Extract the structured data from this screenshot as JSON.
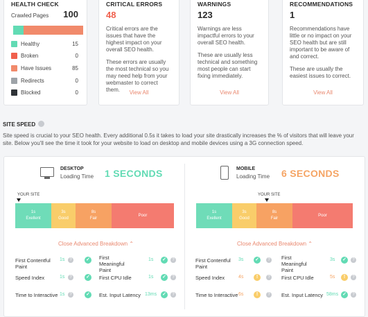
{
  "health_check": {
    "title": "HEALTH CHECK",
    "crawled_label": "Crawled Pages",
    "crawled_value": "100",
    "items": [
      {
        "label": "Healthy",
        "value": "15",
        "color": "#62dbb4"
      },
      {
        "label": "Broken",
        "value": "0",
        "color": "#f0604d"
      },
      {
        "label": "Have Issues",
        "value": "85",
        "color": "#f18a6b"
      },
      {
        "label": "Redirects",
        "value": "0",
        "color": "#9ea3a8"
      },
      {
        "label": "Blocked",
        "value": "0",
        "color": "#2f3337"
      }
    ],
    "bar": {
      "healthy_fraction": 0.15,
      "issues_fraction": 0.85
    }
  },
  "critical": {
    "title": "CRITICAL ERRORS",
    "count": "48",
    "count_color": "#f0604d",
    "desc1": "Critical errors are the issues that have the highest impact on your overall SEO health.",
    "desc2": "These errors are usually the most technical so you may need help from your webmaster to correct them.",
    "view_all": "View All"
  },
  "warnings": {
    "title": "WARNINGS",
    "count": "123",
    "desc1": "Warnings are less impactful errors to your overall SEO health.",
    "desc2": "These are usually less technical and something most people can start fixing immediately.",
    "view_all": "View All"
  },
  "recommendations": {
    "title": "RECOMMENDATIONS",
    "count": "1",
    "desc1": "Recommendations have little or no impact on your SEO health but are still important to be aware of and correct.",
    "desc2": "These are usually the easiest issues to correct.",
    "view_all": "View All"
  },
  "site_speed": {
    "title": "SITE SPEED",
    "text": "Site speed is crucial to your SEO health. Every additional 0.5s it takes to load your site drastically increases the % of visitors that will leave your site. Below you'll see the time it took for your website to load on desktop and mobile devices using a 3G connection speed.",
    "your_site": "YOUR SITE",
    "breakdown": "Close Advanced Breakdown",
    "segments": [
      {
        "time": "1s",
        "label": "Exellent",
        "color": "#6fdcb8"
      },
      {
        "time": "3s",
        "label": "Good",
        "color": "#f9cd6a"
      },
      {
        "time": "8s",
        "label": "Fair",
        "color": "#f7a263"
      },
      {
        "time": "",
        "label": "Poor",
        "color": "#f47b70"
      }
    ],
    "desktop": {
      "name": "DESKTOP",
      "sub": "Loading Time",
      "seconds": "1 SECONDS",
      "color": "#62dbb4",
      "metrics": [
        {
          "label": "First Contentful Paint",
          "value": "1s",
          "color": "#62dbb4"
        },
        {
          "label": "First Meaningful Paint",
          "value": "1s",
          "color": "#62dbb4"
        },
        {
          "label": "Speed Index",
          "value": "1s",
          "color": "#62dbb4"
        },
        {
          "label": "First CPU Idle",
          "value": "1s",
          "color": "#62dbb4"
        },
        {
          "label": "Time to Interactive",
          "value": "1s",
          "color": "#62dbb4"
        },
        {
          "label": "Est. Input Latency",
          "value": "13ms",
          "color": "#62dbb4"
        }
      ]
    },
    "mobile": {
      "name": "MOBILE",
      "sub": "Loading Time",
      "seconds": "6 SECONDS",
      "color": "#f5a464",
      "metrics": [
        {
          "label": "First Contentful Paint",
          "value": "3s",
          "color": "#62dbb4"
        },
        {
          "label": "First Meaningful Paint",
          "value": "3s",
          "color": "#62dbb4"
        },
        {
          "label": "Speed Index",
          "value": "4s",
          "color": "#f5a464"
        },
        {
          "label": "First CPU Idle",
          "value": "5s",
          "color": "#f5a464"
        },
        {
          "label": "Time to Interactive",
          "value": "6s",
          "color": "#f5a464"
        },
        {
          "label": "Est. Input Latency",
          "value": "58ms",
          "color": "#62dbb4"
        }
      ]
    }
  }
}
